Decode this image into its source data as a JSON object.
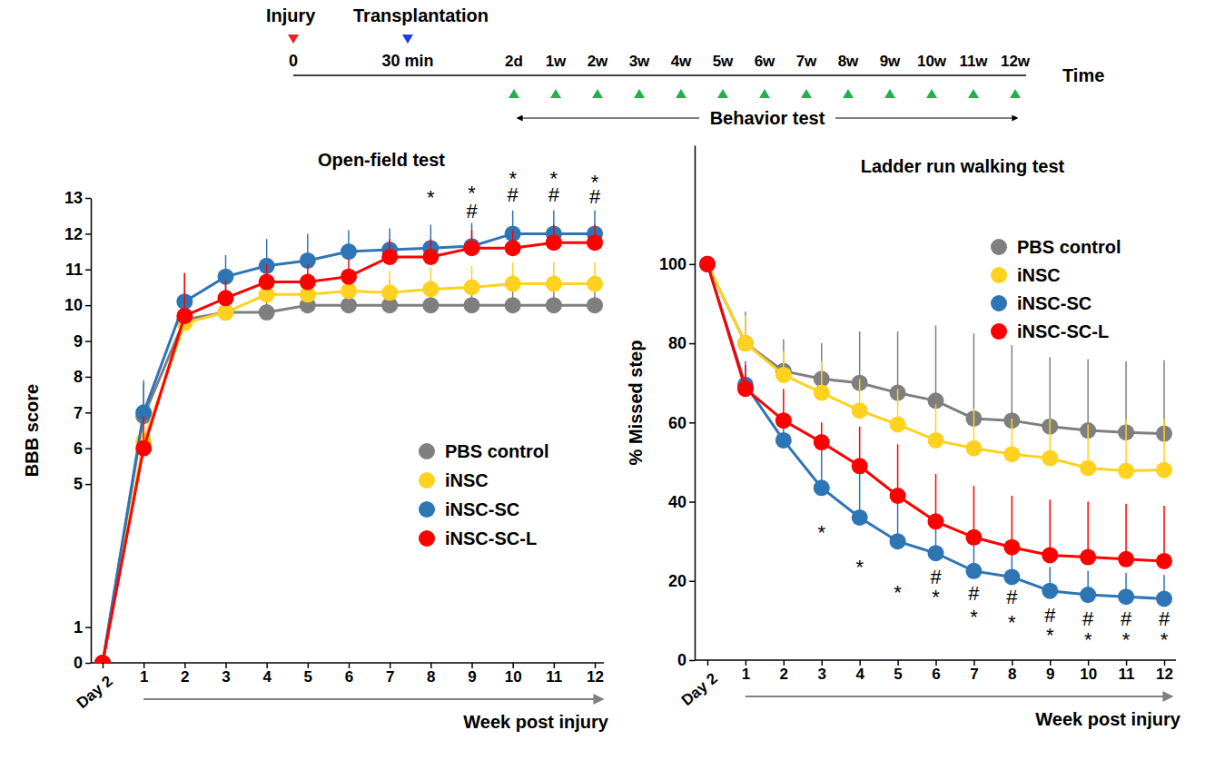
{
  "timeline": {
    "events": [
      {
        "label": "Injury",
        "time": "0"
      },
      {
        "label": "Transplantation",
        "time": "30 min"
      }
    ],
    "test_points": [
      "2d",
      "1w",
      "2w",
      "3w",
      "4w",
      "5w",
      "6w",
      "7w",
      "8w",
      "9w",
      "10w",
      "11w",
      "12w"
    ],
    "axis_label": "Time",
    "period_label": "Behavior test"
  },
  "chart_data": [
    {
      "type": "line",
      "title": "Open-field test",
      "y_label": "BBB score",
      "x_label": "Week post injury",
      "categories": [
        "Day 2",
        "1",
        "2",
        "3",
        "4",
        "5",
        "6",
        "7",
        "8",
        "9",
        "10",
        "11",
        "12"
      ],
      "ylim": [
        0,
        13
      ],
      "yticks": [
        0,
        1,
        5,
        6,
        7,
        8,
        9,
        10,
        11,
        12,
        13
      ],
      "grid": false,
      "legend": "lower right",
      "marker": "circle",
      "series": [
        {
          "name": "PBS control",
          "color": "#7f7f7f",
          "values": [
            0,
            6.9,
            9.6,
            9.8,
            9.8,
            10.0,
            10.0,
            10.0,
            10.0,
            10.0,
            10.0,
            10.0,
            10.0
          ],
          "errors": [
            0,
            0.9,
            0.5,
            0.9,
            0.65,
            0.7,
            0.7,
            0.7,
            0.7,
            0.7,
            0.7,
            0.7,
            0.7
          ]
        },
        {
          "name": "iNSC",
          "color": "#ffd21f",
          "values": [
            0,
            6.2,
            9.5,
            9.8,
            10.3,
            10.3,
            10.4,
            10.35,
            10.45,
            10.5,
            10.6,
            10.6,
            10.6
          ],
          "errors": [
            0,
            0.6,
            0.6,
            0.6,
            0.6,
            0.6,
            0.6,
            0.6,
            0.6,
            0.6,
            0.6,
            0.6,
            0.6
          ]
        },
        {
          "name": "iNSC-SC",
          "color": "#2e75b6",
          "values": [
            0,
            7.0,
            10.1,
            10.8,
            11.1,
            11.25,
            11.5,
            11.55,
            11.6,
            11.65,
            12.0,
            12.0,
            12.0
          ],
          "errors": [
            0,
            0.9,
            0.8,
            0.6,
            0.75,
            0.75,
            0.6,
            0.6,
            0.65,
            0.65,
            0.65,
            0.65,
            0.65
          ]
        },
        {
          "name": "iNSC-SC-L",
          "color": "#ff0000",
          "values": [
            0,
            6.0,
            9.7,
            10.2,
            10.65,
            10.65,
            10.8,
            11.35,
            11.35,
            11.6,
            11.6,
            11.75,
            11.75
          ],
          "errors": [
            0,
            0.9,
            1.2,
            0.5,
            0.5,
            0.5,
            0.5,
            0.5,
            0.5,
            0.5,
            0.5,
            0.5,
            0.5
          ]
        }
      ],
      "annotations": [
        {
          "category": "8",
          "text": "*",
          "y": 12.98
        },
        {
          "category": "9",
          "text": "*",
          "y": 13.1
        },
        {
          "category": "9",
          "text": "#",
          "y": 12.6
        },
        {
          "category": "10",
          "text": "*",
          "y": 13.5
        },
        {
          "category": "10",
          "text": "#",
          "y": 13.05
        },
        {
          "category": "11",
          "text": "*",
          "y": 13.5
        },
        {
          "category": "11",
          "text": "#",
          "y": 13.05
        },
        {
          "category": "12",
          "text": "*",
          "y": 13.4
        },
        {
          "category": "12",
          "text": "#",
          "y": 13.0
        }
      ]
    },
    {
      "type": "line",
      "title": "Ladder run walking test",
      "y_label": "% Missed step",
      "x_label": "Week post injury",
      "categories": [
        "Day 2",
        "1",
        "2",
        "3",
        "4",
        "5",
        "6",
        "7",
        "8",
        "9",
        "10",
        "11",
        "12"
      ],
      "ylim": [
        0,
        130
      ],
      "yticks": [
        0,
        20,
        40,
        60,
        80,
        100
      ],
      "grid": false,
      "legend": "upper right",
      "marker": "circle",
      "series": [
        {
          "name": "PBS control",
          "color": "#7f7f7f",
          "values": [
            100,
            80,
            73,
            71,
            70,
            67.5,
            65.5,
            61,
            60.5,
            59,
            58,
            57.5,
            57.2
          ],
          "errors": [
            0,
            8,
            8,
            9,
            13,
            15.5,
            19,
            21.5,
            19,
            17.5,
            18,
            18,
            18.5
          ]
        },
        {
          "name": "iNSC",
          "color": "#ffd21f",
          "values": [
            100,
            80,
            72,
            67.5,
            63,
            59.5,
            55.5,
            53.5,
            52,
            51,
            48.5,
            47.8,
            48
          ],
          "errors": [
            0,
            7,
            6,
            8,
            8,
            9,
            9,
            10,
            9,
            10,
            11,
            13,
            13
          ]
        },
        {
          "name": "iNSC-SC",
          "color": "#2e75b6",
          "values": [
            100,
            69.5,
            55.5,
            43.5,
            36,
            30,
            27,
            22.5,
            21,
            17.5,
            16.5,
            16,
            15.5
          ],
          "errors": [
            0,
            6,
            7,
            11,
            11,
            10,
            9,
            8,
            7,
            6,
            6,
            6,
            6
          ]
        },
        {
          "name": "iNSC-SC-L",
          "color": "#ff0000",
          "values": [
            100,
            68.5,
            60.5,
            55,
            49,
            41.5,
            35,
            31,
            28.5,
            26.5,
            26,
            25.5,
            25
          ],
          "errors": [
            0,
            6,
            8,
            5,
            10,
            13,
            12,
            13,
            13,
            14,
            14,
            14,
            14
          ]
        }
      ],
      "annotations": [
        {
          "category": "3",
          "text": "*",
          "y": 31.9
        },
        {
          "category": "4",
          "text": "*",
          "y": 23
        },
        {
          "category": "5",
          "text": "*",
          "y": 16.6
        },
        {
          "category": "6",
          "text": "#",
          "y": 20.6
        },
        {
          "category": "6",
          "text": "*",
          "y": 15.5
        },
        {
          "category": "7",
          "text": "#",
          "y": 16.4
        },
        {
          "category": "7",
          "text": "*",
          "y": 10.5
        },
        {
          "category": "8",
          "text": "#",
          "y": 15.5
        },
        {
          "category": "8",
          "text": "*",
          "y": 9.1
        },
        {
          "category": "9",
          "text": "#",
          "y": 11
        },
        {
          "category": "9",
          "text": "*",
          "y": 5.9
        },
        {
          "category": "10",
          "text": "#",
          "y": 10
        },
        {
          "category": "10",
          "text": "*",
          "y": 4.7
        },
        {
          "category": "11",
          "text": "#",
          "y": 10
        },
        {
          "category": "11",
          "text": "*",
          "y": 4.7
        },
        {
          "category": "12",
          "text": "#",
          "y": 10
        },
        {
          "category": "12",
          "text": "*",
          "y": 4.7
        }
      ]
    }
  ]
}
